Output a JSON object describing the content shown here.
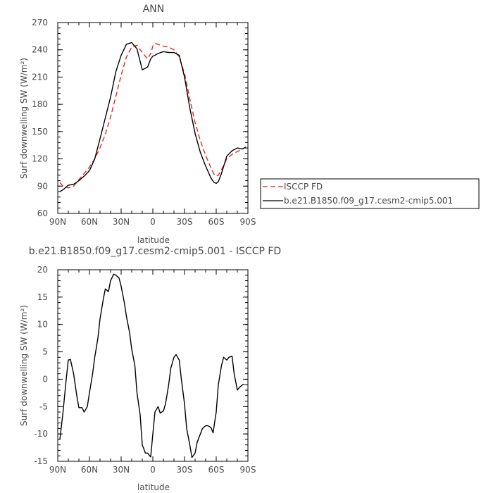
{
  "chart_data": [
    {
      "type": "line",
      "title": "ANN",
      "xlabel": "latitude",
      "ylabel": "Surf downwelling SW (W/m²)",
      "x_tick_labels": [
        "90N",
        "60N",
        "30N",
        "0",
        "30S",
        "60S",
        "90S"
      ],
      "x_ticks": [
        90,
        60,
        30,
        0,
        -30,
        -60,
        -90
      ],
      "xlim": [
        90,
        -90
      ],
      "ylim": [
        60,
        270
      ],
      "y_ticks": [
        60,
        90,
        120,
        150,
        180,
        210,
        240,
        270
      ],
      "legend_position": "right",
      "x": [
        88,
        85,
        80,
        75,
        70,
        65,
        60,
        55,
        50,
        45,
        40,
        35,
        30,
        25,
        20,
        15,
        10,
        5,
        2,
        0,
        -2,
        -5,
        -10,
        -15,
        -20,
        -25,
        -30,
        -35,
        -40,
        -45,
        -50,
        -55,
        -58,
        -60,
        -62,
        -65,
        -70,
        -75,
        -80,
        -85,
        -88
      ],
      "series": [
        {
          "name": "ISCCP FD",
          "color": "#e8251f",
          "dash": "dashed",
          "values": [
            94,
            90,
            88,
            90,
            97,
            104,
            111,
            120,
            132,
            147,
            166,
            189,
            212,
            232,
            243,
            245,
            237,
            230,
            236,
            244,
            247,
            246,
            244,
            243,
            240,
            232,
            214,
            186,
            160,
            140,
            124,
            110,
            103,
            101,
            102,
            108,
            120,
            125,
            128,
            131,
            133
          ]
        },
        {
          "name": "b.e21.B1850.f09_g17.cesm2-cmip5.001",
          "color": "#000000",
          "dash": "solid",
          "values": [
            84,
            86,
            91,
            92,
            96,
            101,
            107,
            120,
            142,
            165,
            188,
            216,
            234,
            246,
            248,
            241,
            218,
            221,
            230,
            233,
            234,
            236,
            238,
            237,
            237,
            234,
            210,
            176,
            148,
            127,
            112,
            99,
            94,
            93,
            95,
            104,
            123,
            129,
            132,
            131,
            133
          ]
        }
      ]
    },
    {
      "type": "line",
      "title": "b.e21.B1850.f09_g17.cesm2-cmip5.001 - ISCCP FD",
      "xlabel": "latitude",
      "ylabel": "Surf downwelling SW (W/m²)",
      "x_tick_labels": [
        "90N",
        "60N",
        "30N",
        "0",
        "30S",
        "60S",
        "90S"
      ],
      "x_ticks": [
        90,
        60,
        30,
        0,
        -30,
        -60,
        -90
      ],
      "xlim": [
        90,
        -90
      ],
      "ylim": [
        -15,
        20
      ],
      "y_ticks": [
        -15,
        -10,
        -5,
        0,
        5,
        10,
        15,
        20
      ],
      "x": [
        88,
        85,
        82,
        80,
        78,
        75,
        72,
        70,
        67,
        65,
        62,
        60,
        57,
        55,
        52,
        50,
        47,
        45,
        42,
        40,
        37,
        35,
        32,
        30,
        27,
        25,
        22,
        20,
        17,
        15,
        12,
        10,
        7,
        5,
        2,
        0,
        -2,
        -5,
        -7,
        -10,
        -12,
        -15,
        -17,
        -20,
        -22,
        -25,
        -27,
        -30,
        -32,
        -35,
        -37,
        -40,
        -42,
        -45,
        -47,
        -50,
        -52,
        -55,
        -57,
        -60,
        -62,
        -65,
        -67,
        -70,
        -72,
        -75,
        -77,
        -80,
        -82,
        -85,
        -87
      ],
      "series": [
        {
          "name": "",
          "color": "#000000",
          "values": [
            -11,
            -6,
            0,
            3.5,
            3.6,
            1,
            -3,
            -5.2,
            -5.2,
            -6,
            -5,
            -2.5,
            1,
            4,
            7.5,
            11,
            14.5,
            16.5,
            16,
            18,
            19.2,
            19,
            18.5,
            17,
            14,
            11.5,
            8.5,
            5.5,
            2.5,
            -2.5,
            -6.5,
            -12,
            -13.5,
            -13.5,
            -14.2,
            -10,
            -6,
            -5,
            -6.2,
            -5.8,
            -4.5,
            -1,
            2,
            4,
            4.5,
            3.5,
            0,
            -4.5,
            -9,
            -12,
            -14.3,
            -13.5,
            -11.5,
            -10,
            -9,
            -8.5,
            -8.5,
            -8.8,
            -9.8,
            -6,
            -1,
            2.5,
            4,
            3.5,
            4,
            4.2,
            1,
            -2,
            -1.5,
            -1,
            -1
          ]
        }
      ]
    }
  ]
}
